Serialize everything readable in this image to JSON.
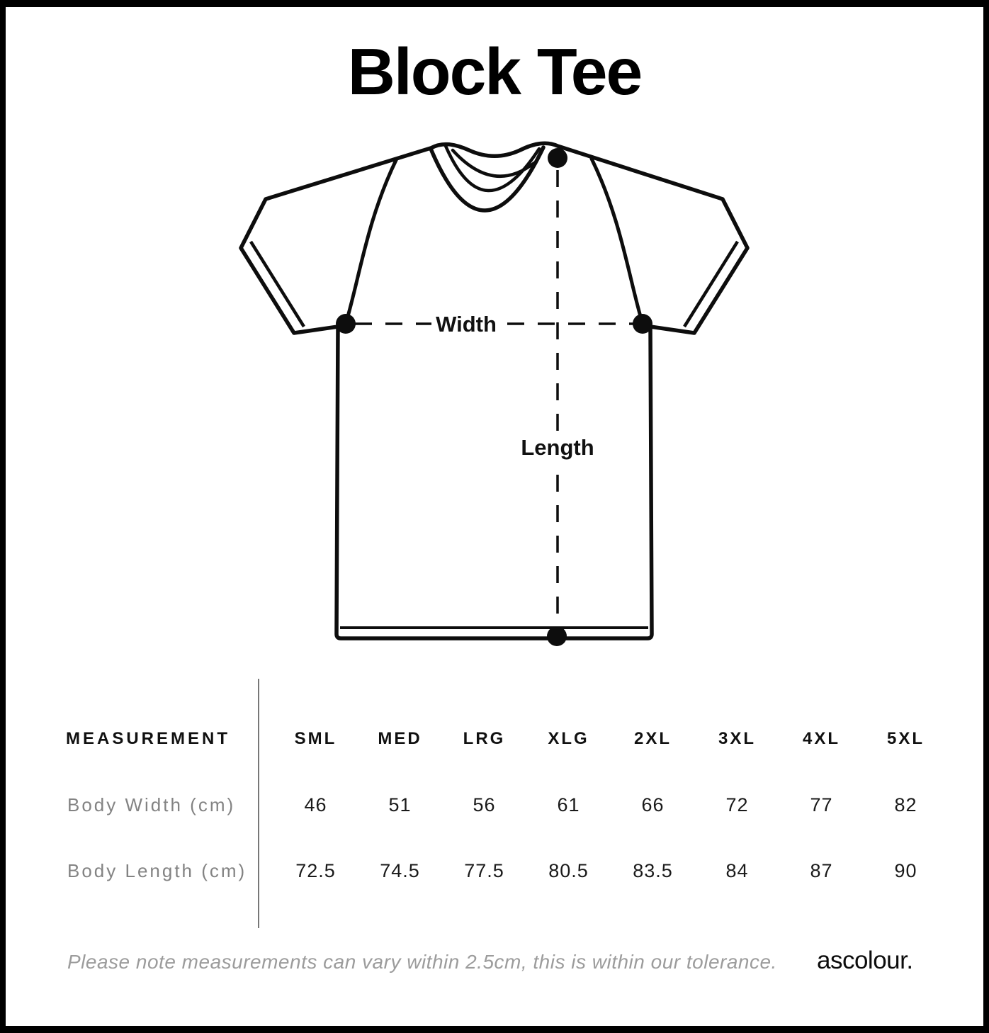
{
  "title": "Block Tee",
  "diagram": {
    "width_label": "Width",
    "length_label": "Length"
  },
  "table": {
    "measurement_header": "MEASUREMENT",
    "size_headers": [
      "SML",
      "MED",
      "LRG",
      "XLG",
      "2XL",
      "3XL",
      "4XL",
      "5XL"
    ],
    "rows": [
      {
        "label": "Body Width (cm)",
        "values": [
          "46",
          "51",
          "56",
          "61",
          "66",
          "72",
          "77",
          "82"
        ]
      },
      {
        "label": "Body Length (cm)",
        "values": [
          "72.5",
          "74.5",
          "77.5",
          "80.5",
          "83.5",
          "84",
          "87",
          "90"
        ]
      }
    ]
  },
  "footer": {
    "note": "Please note measurements can vary within 2.5cm, this is within our tolerance.",
    "brand": "ascolour."
  },
  "colors": {
    "outline_black": "#0d0d0d",
    "text_black": "#111111",
    "gray_label": "#838383",
    "note_gray": "#9c9c9c",
    "divider": "#777777",
    "background": "#ffffff"
  }
}
